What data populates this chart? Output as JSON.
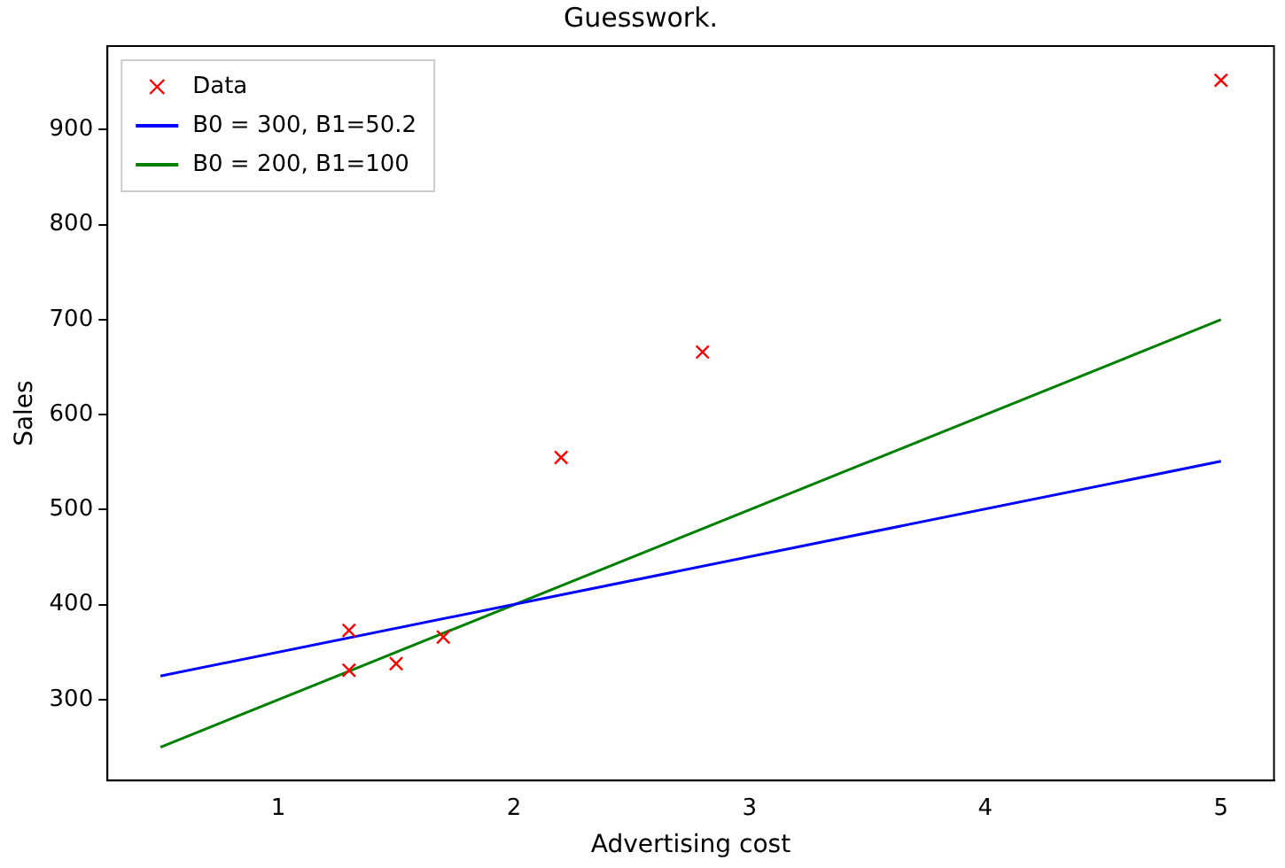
{
  "chart_data": {
    "type": "scatter",
    "title": "Guesswork.",
    "xlabel": "Advertising cost",
    "ylabel": "Sales",
    "xlim": [
      0.275,
      5.225
    ],
    "xticks": [
      1,
      2,
      3,
      4,
      5
    ],
    "ylim": [
      215,
      988
    ],
    "yticks": [
      300,
      400,
      500,
      600,
      700,
      800,
      900
    ],
    "grid": false,
    "legend": "top left",
    "series": [
      {
        "name": "Data",
        "type": "scatter",
        "marker": "cross",
        "color": "#ff0000",
        "x": [
          1.3,
          1.3,
          1.5,
          1.7,
          2.2,
          2.8,
          5
        ],
        "values": [
          373,
          331,
          338,
          366,
          555,
          666,
          952
        ]
      },
      {
        "name": "B0 = 300, B1=50.2",
        "type": "line",
        "marker": "none",
        "color": "#0000ff",
        "x": [
          0.5,
          5
        ],
        "values": [
          325,
          551
        ]
      },
      {
        "name": "B0 = 200, B1=100",
        "type": "line",
        "marker": "none",
        "color": "#008000",
        "x": [
          0.5,
          5
        ],
        "values": [
          250,
          700
        ]
      }
    ]
  }
}
